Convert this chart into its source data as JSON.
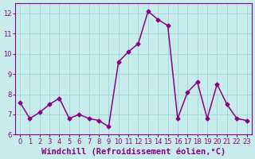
{
  "x": [
    0,
    1,
    2,
    3,
    4,
    5,
    6,
    7,
    8,
    9,
    10,
    11,
    12,
    13,
    14,
    15,
    16,
    17,
    18,
    19,
    20,
    21,
    22,
    23
  ],
  "y": [
    7.6,
    6.8,
    7.1,
    7.5,
    7.8,
    6.8,
    7.0,
    6.8,
    6.7,
    6.4,
    9.6,
    10.1,
    10.5,
    12.1,
    11.7,
    11.4,
    6.8,
    8.1,
    8.6,
    6.8,
    8.5,
    7.5,
    6.8,
    6.7
  ],
  "line_color": "#880088",
  "marker": "D",
  "marker_size": 2.5,
  "line_width": 1.1,
  "bg_color": "#c8ecec",
  "grid_color": "#a0d8d8",
  "xlabel": "Windchill (Refroidissement éolien,°C)",
  "xlabel_color": "#880088",
  "xlim": [
    -0.5,
    23.5
  ],
  "ylim": [
    6,
    12.5
  ],
  "yticks": [
    6,
    7,
    8,
    9,
    10,
    11,
    12
  ],
  "xticks": [
    0,
    1,
    2,
    3,
    4,
    5,
    6,
    7,
    8,
    9,
    10,
    11,
    12,
    13,
    14,
    15,
    16,
    17,
    18,
    19,
    20,
    21,
    22,
    23
  ],
  "tick_color": "#880088",
  "tick_fontsize": 6.0,
  "xlabel_fontsize": 7.5,
  "spine_color": "#880088"
}
